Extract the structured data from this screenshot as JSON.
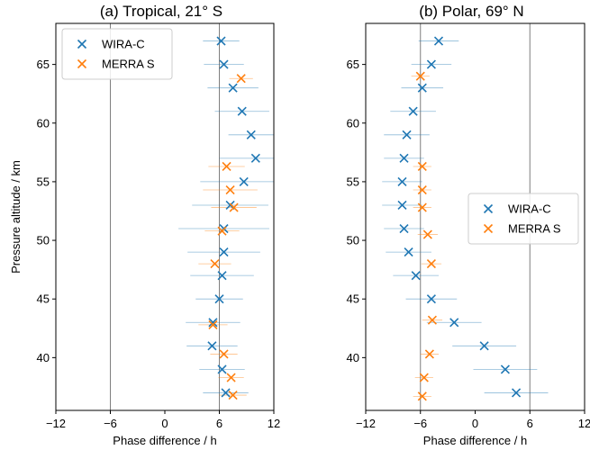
{
  "chart_data": [
    {
      "type": "scatter",
      "title": "(a) Tropical, 21° S",
      "xlabel": "Phase difference / h",
      "ylabel": "Pressure altitude / km",
      "xlim": [
        -12,
        12
      ],
      "ylim": [
        35.5,
        68.5
      ],
      "xticks": [
        -12,
        -6,
        0,
        6,
        12
      ],
      "xtick_labels": [
        "−12",
        "−6",
        "0",
        "6",
        "12"
      ],
      "yticks": [
        40,
        45,
        50,
        55,
        60,
        65
      ],
      "ytick_labels": [
        "40",
        "45",
        "50",
        "55",
        "60",
        "65"
      ],
      "vlines": [
        -6,
        6
      ],
      "legend_position": "top-left",
      "series": [
        {
          "name": "WIRA-C",
          "color": "#1f77b4",
          "points": [
            {
              "x": 6.7,
              "y": 37.0,
              "xerr": 2.5
            },
            {
              "x": 6.3,
              "y": 39.0,
              "xerr": 2.5
            },
            {
              "x": 5.2,
              "y": 41.0,
              "xerr": 2.8
            },
            {
              "x": 5.3,
              "y": 43.0,
              "xerr": 3.0
            },
            {
              "x": 6.0,
              "y": 45.0,
              "xerr": 2.6
            },
            {
              "x": 6.3,
              "y": 47.0,
              "xerr": 3.5
            },
            {
              "x": 6.5,
              "y": 49.0,
              "xerr": 4.0
            },
            {
              "x": 6.5,
              "y": 51.0,
              "xerr": 5.0
            },
            {
              "x": 7.2,
              "y": 53.0,
              "xerr": 4.2
            },
            {
              "x": 8.7,
              "y": 55.0,
              "xerr": 4.8
            },
            {
              "x": 10.0,
              "y": 57.0,
              "xerr": 4.0
            },
            {
              "x": 9.5,
              "y": 59.0,
              "xerr": 2.5
            },
            {
              "x": 8.5,
              "y": 61.0,
              "xerr": 3.0
            },
            {
              "x": 7.5,
              "y": 63.0,
              "xerr": 2.8
            },
            {
              "x": 6.5,
              "y": 65.0,
              "xerr": 2.2
            },
            {
              "x": 6.2,
              "y": 67.0,
              "xerr": 2.0
            }
          ]
        },
        {
          "name": "MERRA S",
          "color": "#ff7f0e",
          "points": [
            {
              "x": 7.5,
              "y": 36.8,
              "xerr": 1.5
            },
            {
              "x": 7.3,
              "y": 38.3,
              "xerr": 1.4
            },
            {
              "x": 6.5,
              "y": 40.3,
              "xerr": 1.5
            },
            {
              "x": 5.3,
              "y": 42.8,
              "xerr": 1.6
            },
            {
              "x": 5.5,
              "y": 48.0,
              "xerr": 1.8
            },
            {
              "x": 6.3,
              "y": 50.8,
              "xerr": 1.9
            },
            {
              "x": 7.6,
              "y": 52.8,
              "xerr": 2.5
            },
            {
              "x": 7.2,
              "y": 54.3,
              "xerr": 3.0
            },
            {
              "x": 6.8,
              "y": 56.3,
              "xerr": 2.0
            },
            {
              "x": 8.4,
              "y": 63.8,
              "xerr": 1.3
            }
          ]
        }
      ]
    },
    {
      "type": "scatter",
      "title": "(b) Polar, 69° N",
      "xlabel": "Phase difference / h",
      "ylabel": "",
      "xlim": [
        -12,
        12
      ],
      "ylim": [
        35.5,
        68.5
      ],
      "xticks": [
        -12,
        -6,
        0,
        6,
        12
      ],
      "xtick_labels": [
        "−12",
        "−6",
        "0",
        "6",
        "12"
      ],
      "yticks": [
        40,
        45,
        50,
        55,
        60,
        65
      ],
      "ytick_labels": [
        "40",
        "45",
        "50",
        "55",
        "60",
        "65"
      ],
      "vlines": [
        -6,
        6
      ],
      "legend_position": "center-right",
      "series": [
        {
          "name": "WIRA-C",
          "color": "#1f77b4",
          "points": [
            {
              "x": 4.5,
              "y": 37.0,
              "xerr": 3.5
            },
            {
              "x": 3.3,
              "y": 39.0,
              "xerr": 3.5
            },
            {
              "x": 1.0,
              "y": 41.0,
              "xerr": 3.5
            },
            {
              "x": -2.3,
              "y": 43.0,
              "xerr": 3.0
            },
            {
              "x": -4.8,
              "y": 45.0,
              "xerr": 2.8
            },
            {
              "x": -6.5,
              "y": 47.0,
              "xerr": 2.5
            },
            {
              "x": -7.3,
              "y": 49.0,
              "xerr": 2.5
            },
            {
              "x": -7.8,
              "y": 51.0,
              "xerr": 2.2
            },
            {
              "x": -8.0,
              "y": 53.0,
              "xerr": 2.2
            },
            {
              "x": -8.0,
              "y": 55.0,
              "xerr": 2.2
            },
            {
              "x": -7.8,
              "y": 57.0,
              "xerr": 2.2
            },
            {
              "x": -7.5,
              "y": 59.0,
              "xerr": 2.5
            },
            {
              "x": -6.8,
              "y": 61.0,
              "xerr": 2.5
            },
            {
              "x": -5.8,
              "y": 63.0,
              "xerr": 2.3
            },
            {
              "x": -4.8,
              "y": 65.0,
              "xerr": 2.2
            },
            {
              "x": -4.0,
              "y": 67.0,
              "xerr": 2.2
            }
          ]
        },
        {
          "name": "MERRA S",
          "color": "#ff7f0e",
          "points": [
            {
              "x": -5.8,
              "y": 36.7,
              "xerr": 1.0
            },
            {
              "x": -5.6,
              "y": 38.3,
              "xerr": 1.0
            },
            {
              "x": -5.0,
              "y": 40.3,
              "xerr": 1.0
            },
            {
              "x": -4.7,
              "y": 43.2,
              "xerr": 1.1
            },
            {
              "x": -4.8,
              "y": 48.0,
              "xerr": 1.1
            },
            {
              "x": -5.2,
              "y": 50.5,
              "xerr": 1.1
            },
            {
              "x": -5.8,
              "y": 52.8,
              "xerr": 1.0
            },
            {
              "x": -5.8,
              "y": 54.3,
              "xerr": 1.0
            },
            {
              "x": -5.8,
              "y": 56.3,
              "xerr": 1.0
            },
            {
              "x": -6.0,
              "y": 64.0,
              "xerr": 1.0
            }
          ]
        }
      ]
    }
  ]
}
